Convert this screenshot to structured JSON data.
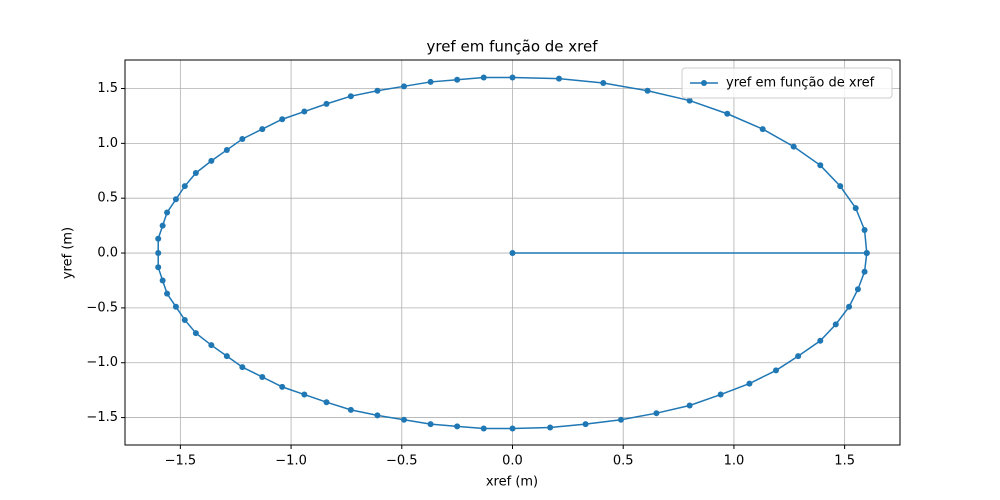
{
  "chart_data": {
    "type": "line",
    "title": "yref em função de xref",
    "x_label": "xref (m)",
    "y_label": "yref (m)",
    "xlim": [
      -1.75,
      1.75
    ],
    "ylim": [
      -1.75,
      1.76
    ],
    "xticks": [
      {
        "value": -1.5,
        "label": "−1.5"
      },
      {
        "value": -1.0,
        "label": "−1.0"
      },
      {
        "value": -0.5,
        "label": "−0.5"
      },
      {
        "value": 0,
        "label": "0.0"
      },
      {
        "value": 0.5,
        "label": "0.5"
      },
      {
        "value": 1.0,
        "label": "1.0"
      },
      {
        "value": 1.5,
        "label": "1.5"
      }
    ],
    "yticks": [
      {
        "value": -1.5,
        "label": "−1.5"
      },
      {
        "value": -1.0,
        "label": "−1.0"
      },
      {
        "value": -0.5,
        "label": "−0.5"
      },
      {
        "value": 0,
        "label": "0.0"
      },
      {
        "value": 0.5,
        "label": "0.5"
      },
      {
        "value": 1.0,
        "label": "1.0"
      },
      {
        "value": 1.5,
        "label": "1.5"
      }
    ],
    "grid": true,
    "legend": "upper right",
    "series": [
      {
        "name": "yref em função de xref",
        "color": "#1f77b4",
        "x": [
          0,
          1.6,
          1.59,
          1.55,
          1.48,
          1.39,
          1.27,
          1.13,
          0.97,
          0.8,
          0.61,
          0.41,
          0.21,
          0,
          -0.13,
          -0.25,
          -0.37,
          -0.49,
          -0.61,
          -0.73,
          -0.84,
          -0.94,
          -1.04,
          -1.13,
          -1.22,
          -1.29,
          -1.36,
          -1.43,
          -1.48,
          -1.52,
          -1.56,
          -1.58,
          -1.6,
          -1.6,
          -1.6,
          -1.58,
          -1.56,
          -1.52,
          -1.48,
          -1.43,
          -1.36,
          -1.29,
          -1.22,
          -1.13,
          -1.04,
          -0.94,
          -0.84,
          -0.73,
          -0.61,
          -0.49,
          -0.37,
          -0.25,
          -0.13,
          0,
          0.17,
          0.33,
          0.49,
          0.65,
          0.8,
          0.94,
          1.07,
          1.19,
          1.29,
          1.39,
          1.46,
          1.52,
          1.56,
          1.59,
          1.6
        ],
        "values": [
          0,
          0,
          0.21,
          0.41,
          0.61,
          0.8,
          0.97,
          1.13,
          1.27,
          1.39,
          1.48,
          1.55,
          1.59,
          1.6,
          1.6,
          1.58,
          1.56,
          1.52,
          1.48,
          1.43,
          1.36,
          1.29,
          1.22,
          1.13,
          1.04,
          0.94,
          0.84,
          0.73,
          0.61,
          0.49,
          0.37,
          0.25,
          0.13,
          0,
          -0.13,
          -0.25,
          -0.37,
          -0.49,
          -0.61,
          -0.73,
          -0.84,
          -0.94,
          -1.04,
          -1.13,
          -1.22,
          -1.29,
          -1.36,
          -1.43,
          -1.48,
          -1.52,
          -1.56,
          -1.58,
          -1.6,
          -1.6,
          -1.59,
          -1.56,
          -1.52,
          -1.46,
          -1.39,
          -1.29,
          -1.19,
          -1.07,
          -0.94,
          -0.8,
          -0.65,
          -0.49,
          -0.33,
          -0.17,
          0
        ]
      }
    ]
  }
}
